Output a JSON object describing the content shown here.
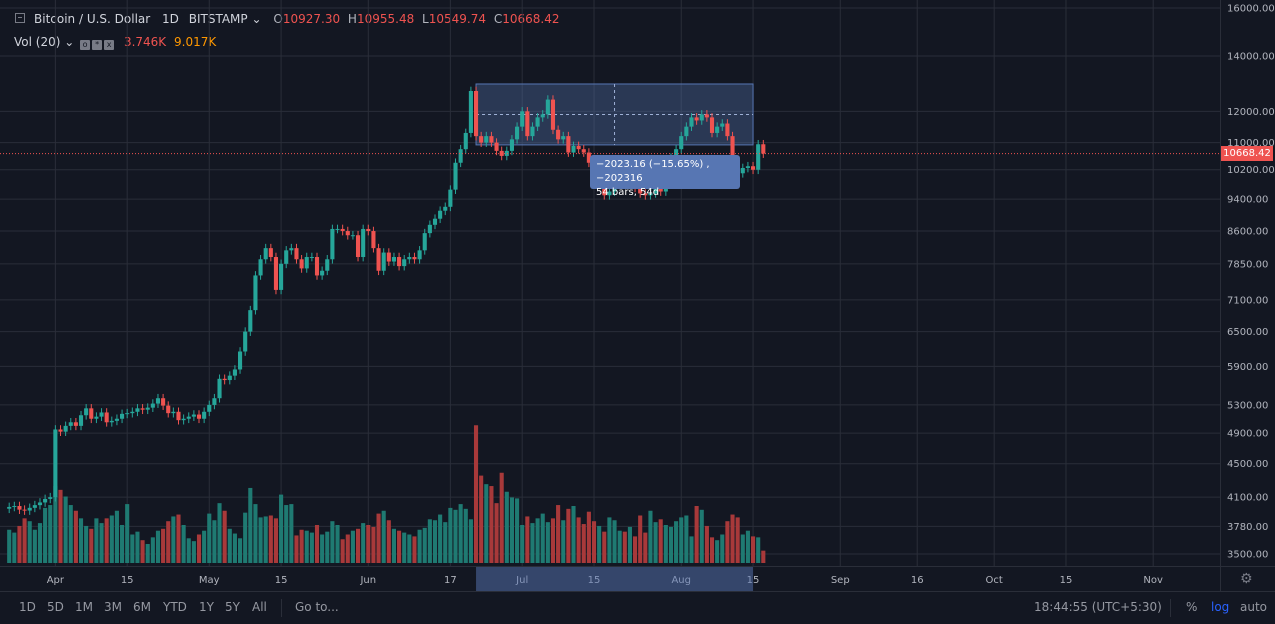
{
  "header": {
    "symbol": "Bitcoin / U.S. Dollar",
    "interval": "1D",
    "exchange": "BITSTAMP",
    "ohlc": {
      "o_label": "O",
      "o": "10927.30",
      "h_label": "H",
      "h": "10955.48",
      "l_label": "L",
      "l": "10549.74",
      "c_label": "C",
      "c": "10668.42"
    }
  },
  "volume_legend": {
    "label": "Vol (20)",
    "v1": "3.746K",
    "v2": "9.017K"
  },
  "tooltip": {
    "line1": "−2023.16 (−15.65%) , −202316",
    "line2": "54 bars, 54d"
  },
  "last_price_tag": "10668.42",
  "bottom_bar": {
    "ranges": [
      "1D",
      "5D",
      "1M",
      "3M",
      "6M",
      "YTD",
      "1Y",
      "5Y",
      "All"
    ],
    "goto": "Go to...",
    "clock": "18:44:55 (UTC+5:30)",
    "percent": "%",
    "log": "log",
    "auto": "auto"
  },
  "colors": {
    "up": "#26a69a",
    "down": "#ef5350",
    "vol_up": "#1f7a72",
    "vol_down": "#a8393a",
    "grid": "#2a2e39",
    "selection": "#5776b3"
  },
  "chart_data": {
    "type": "candlestick",
    "title": "Bitcoin / U.S. Dollar",
    "y_scale": "log",
    "ylim": [
      3500,
      16000
    ],
    "y_ticks": [
      16000,
      14000,
      12000,
      11000,
      10200,
      9400,
      8600,
      7850,
      7100,
      6500,
      5900,
      5300,
      4900,
      4500,
      4100,
      3780,
      3500
    ],
    "x_ticks": [
      {
        "label": "Apr",
        "day": 9
      },
      {
        "label": "15",
        "day": 23
      },
      {
        "label": "May",
        "day": 39
      },
      {
        "label": "15",
        "day": 53
      },
      {
        "label": "Jun",
        "day": 70
      },
      {
        "label": "17",
        "day": 86
      },
      {
        "label": "Jul",
        "day": 100
      },
      {
        "label": "15",
        "day": 114
      },
      {
        "label": "Aug",
        "day": 131
      },
      {
        "label": "15",
        "day": 145
      },
      {
        "label": "Sep",
        "day": 162
      },
      {
        "label": "16",
        "day": 177
      },
      {
        "label": "Oct",
        "day": 192
      },
      {
        "label": "15",
        "day": 206
      },
      {
        "label": "Nov",
        "day": 223
      }
    ],
    "closes": [
      3990,
      4000,
      3960,
      3950,
      3980,
      4010,
      4040,
      4080,
      4100,
      4950,
      4920,
      5000,
      5050,
      5000,
      5150,
      5250,
      5100,
      5130,
      5190,
      5050,
      5070,
      5100,
      5170,
      5180,
      5200,
      5250,
      5230,
      5260,
      5320,
      5400,
      5290,
      5180,
      5200,
      5080,
      5100,
      5130,
      5160,
      5100,
      5200,
      5300,
      5400,
      5700,
      5680,
      5750,
      5850,
      6150,
      6500,
      6900,
      7600,
      7950,
      8200,
      8000,
      7300,
      7850,
      8150,
      8200,
      7950,
      7750,
      8000,
      8000,
      7600,
      7700,
      7950,
      8650,
      8650,
      8600,
      8500,
      8500,
      8000,
      8650,
      8600,
      8200,
      7700,
      8100,
      7900,
      8000,
      7800,
      7950,
      8000,
      7950,
      8150,
      8550,
      8750,
      8900,
      9100,
      9200,
      9650,
      10400,
      10800,
      11300,
      12700,
      11200,
      11000,
      11200,
      11000,
      10750,
      10600,
      10750,
      11100,
      11500,
      12000,
      11200,
      11500,
      11800,
      11900,
      12400,
      11400,
      11100,
      11200,
      10700,
      10900,
      10800,
      10700,
      10400,
      10100,
      10200,
      9500,
      9600,
      9800,
      10400,
      10200,
      10200,
      9700,
      9550,
      9500,
      9550,
      9750,
      9600,
      10000,
      10550,
      10800,
      11200,
      11500,
      11800,
      11700,
      11900,
      11800,
      11300,
      11500,
      11600,
      11200,
      10400,
      10100,
      10250,
      10300,
      10200,
      10950,
      10668.42
    ],
    "volumes_k": [
      0.35,
      0.32,
      0.39,
      0.47,
      0.44,
      0.35,
      0.42,
      0.58,
      0.61,
      0.81,
      0.77,
      0.7,
      0.61,
      0.55,
      0.47,
      0.39,
      0.36,
      0.47,
      0.42,
      0.47,
      0.5,
      0.55,
      0.4,
      0.62,
      0.3,
      0.33,
      0.24,
      0.2,
      0.27,
      0.34,
      0.36,
      0.44,
      0.49,
      0.51,
      0.4,
      0.26,
      0.23,
      0.3,
      0.34,
      0.52,
      0.45,
      0.63,
      0.55,
      0.36,
      0.31,
      0.26,
      0.53,
      0.79,
      0.62,
      0.48,
      0.49,
      0.5,
      0.47,
      0.72,
      0.61,
      0.62,
      0.29,
      0.35,
      0.34,
      0.32,
      0.4,
      0.3,
      0.33,
      0.44,
      0.4,
      0.25,
      0.3,
      0.34,
      0.36,
      0.42,
      0.4,
      0.38,
      0.52,
      0.55,
      0.45,
      0.36,
      0.34,
      0.32,
      0.3,
      0.28,
      0.35,
      0.37,
      0.46,
      0.45,
      0.51,
      0.43,
      0.58,
      0.56,
      0.62,
      0.57,
      0.46,
      1.45,
      0.92,
      0.83,
      0.81,
      0.63,
      0.95,
      0.75,
      0.69,
      0.68,
      0.4,
      0.49,
      0.42,
      0.47,
      0.52,
      0.43,
      0.47,
      0.61,
      0.45,
      0.57,
      0.6,
      0.48,
      0.41,
      0.54,
      0.44,
      0.39,
      0.33,
      0.48,
      0.45,
      0.34,
      0.33,
      0.38,
      0.28,
      0.5,
      0.32,
      0.55,
      0.43,
      0.46,
      0.4,
      0.38,
      0.44,
      0.48,
      0.5,
      0.28,
      0.6,
      0.56,
      0.39,
      0.27,
      0.24,
      0.3,
      0.44,
      0.51,
      0.48,
      0.3,
      0.34,
      0.28,
      0.27,
      0.13
    ],
    "selection_box": {
      "start_day": 91,
      "end_day": 145,
      "low": 10930,
      "high": 12950,
      "change": "−2023.16 (−15.65%) , −202316",
      "bars": "54 bars, 54d"
    },
    "last_price": 10668.42
  }
}
